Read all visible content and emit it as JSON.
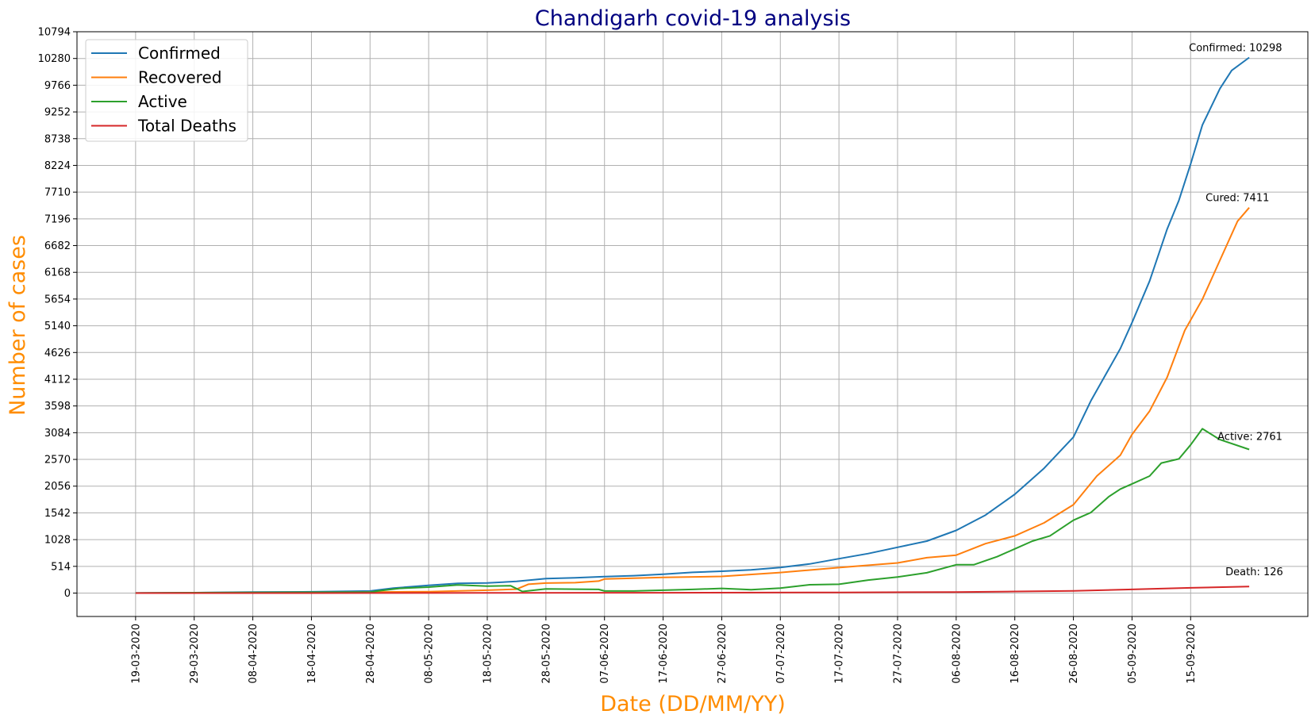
{
  "chart_data": {
    "type": "line",
    "title": "Chandigarh covid-19 analysis",
    "xlabel": "Date (DD/MM/YY)",
    "ylabel": "Number of cases",
    "x_start": "19-03-2020",
    "x_end": "25-09-2020",
    "xlim": [
      "09-03-2020",
      "05-10-2020"
    ],
    "ylim": [
      -450,
      10794
    ],
    "x_ticks": [
      "19-03-2020",
      "29-03-2020",
      "08-04-2020",
      "18-04-2020",
      "28-04-2020",
      "08-05-2020",
      "18-05-2020",
      "28-05-2020",
      "07-06-2020",
      "17-06-2020",
      "27-06-2020",
      "07-07-2020",
      "17-07-2020",
      "27-07-2020",
      "06-08-2020",
      "16-08-2020",
      "26-08-2020",
      "05-09-2020",
      "15-09-2020"
    ],
    "y_ticks": [
      0,
      514,
      1028,
      1542,
      2056,
      2570,
      3084,
      3598,
      4112,
      4626,
      5140,
      5654,
      6168,
      6682,
      7196,
      7710,
      8224,
      8738,
      9252,
      9766,
      10280,
      10794
    ],
    "grid": true,
    "legend_position": "top-left",
    "series": [
      {
        "name": "Confirmed",
        "color": "#1f77b4",
        "points": [
          [
            "19-03-2020",
            1
          ],
          [
            "29-03-2020",
            8
          ],
          [
            "08-04-2020",
            18
          ],
          [
            "18-04-2020",
            25
          ],
          [
            "28-04-2020",
            40
          ],
          [
            "02-05-2020",
            94
          ],
          [
            "08-05-2020",
            150
          ],
          [
            "13-05-2020",
            187
          ],
          [
            "18-05-2020",
            196
          ],
          [
            "23-05-2020",
            225
          ],
          [
            "28-05-2020",
            279
          ],
          [
            "02-06-2020",
            294
          ],
          [
            "07-06-2020",
            317
          ],
          [
            "12-06-2020",
            334
          ],
          [
            "17-06-2020",
            362
          ],
          [
            "22-06-2020",
            398
          ],
          [
            "27-06-2020",
            420
          ],
          [
            "02-07-2020",
            446
          ],
          [
            "07-07-2020",
            491
          ],
          [
            "12-07-2020",
            560
          ],
          [
            "17-07-2020",
            660
          ],
          [
            "22-07-2020",
            760
          ],
          [
            "27-07-2020",
            880
          ],
          [
            "01-08-2020",
            1000
          ],
          [
            "06-08-2020",
            1206
          ],
          [
            "11-08-2020",
            1500
          ],
          [
            "16-08-2020",
            1900
          ],
          [
            "21-08-2020",
            2400
          ],
          [
            "26-08-2020",
            3000
          ],
          [
            "29-08-2020",
            3700
          ],
          [
            "31-08-2020",
            4100
          ],
          [
            "03-09-2020",
            4700
          ],
          [
            "05-09-2020",
            5200
          ],
          [
            "08-09-2020",
            6000
          ],
          [
            "11-09-2020",
            7000
          ],
          [
            "13-09-2020",
            7550
          ],
          [
            "15-09-2020",
            8250
          ],
          [
            "17-09-2020",
            9000
          ],
          [
            "20-09-2020",
            9700
          ],
          [
            "22-09-2020",
            10050
          ],
          [
            "25-09-2020",
            10298
          ]
        ]
      },
      {
        "name": "Recovered",
        "color": "#ff7f0e",
        "points": [
          [
            "19-03-2020",
            0
          ],
          [
            "08-04-2020",
            5
          ],
          [
            "28-04-2020",
            20
          ],
          [
            "08-05-2020",
            27
          ],
          [
            "18-05-2020",
            55
          ],
          [
            "23-05-2020",
            75
          ],
          [
            "25-05-2020",
            170
          ],
          [
            "28-05-2020",
            193
          ],
          [
            "02-06-2020",
            200
          ],
          [
            "06-06-2020",
            230
          ],
          [
            "07-06-2020",
            270
          ],
          [
            "17-06-2020",
            300
          ],
          [
            "27-06-2020",
            320
          ],
          [
            "07-07-2020",
            395
          ],
          [
            "17-07-2020",
            490
          ],
          [
            "27-07-2020",
            580
          ],
          [
            "01-08-2020",
            680
          ],
          [
            "06-08-2020",
            730
          ],
          [
            "11-08-2020",
            950
          ],
          [
            "16-08-2020",
            1100
          ],
          [
            "21-08-2020",
            1350
          ],
          [
            "26-08-2020",
            1700
          ],
          [
            "30-08-2020",
            2250
          ],
          [
            "03-09-2020",
            2650
          ],
          [
            "05-09-2020",
            3050
          ],
          [
            "08-09-2020",
            3500
          ],
          [
            "11-09-2020",
            4150
          ],
          [
            "14-09-2020",
            5050
          ],
          [
            "17-09-2020",
            5650
          ],
          [
            "20-09-2020",
            6400
          ],
          [
            "23-09-2020",
            7150
          ],
          [
            "25-09-2020",
            7411
          ]
        ]
      },
      {
        "name": "Active",
        "color": "#2ca02c",
        "points": [
          [
            "19-03-2020",
            1
          ],
          [
            "08-04-2020",
            12
          ],
          [
            "28-04-2020",
            20
          ],
          [
            "30-04-2020",
            50
          ],
          [
            "03-05-2020",
            90
          ],
          [
            "08-05-2020",
            115
          ],
          [
            "13-05-2020",
            155
          ],
          [
            "18-05-2020",
            135
          ],
          [
            "22-05-2020",
            140
          ],
          [
            "24-05-2020",
            30
          ],
          [
            "28-05-2020",
            80
          ],
          [
            "02-06-2020",
            75
          ],
          [
            "06-06-2020",
            70
          ],
          [
            "07-06-2020",
            40
          ],
          [
            "12-06-2020",
            40
          ],
          [
            "17-06-2020",
            55
          ],
          [
            "22-06-2020",
            70
          ],
          [
            "27-06-2020",
            90
          ],
          [
            "02-07-2020",
            65
          ],
          [
            "07-07-2020",
            95
          ],
          [
            "12-07-2020",
            160
          ],
          [
            "17-07-2020",
            170
          ],
          [
            "22-07-2020",
            250
          ],
          [
            "27-07-2020",
            310
          ],
          [
            "01-08-2020",
            390
          ],
          [
            "06-08-2020",
            545
          ],
          [
            "09-08-2020",
            545
          ],
          [
            "13-08-2020",
            700
          ],
          [
            "16-08-2020",
            850
          ],
          [
            "19-08-2020",
            1000
          ],
          [
            "22-08-2020",
            1100
          ],
          [
            "26-08-2020",
            1400
          ],
          [
            "29-08-2020",
            1550
          ],
          [
            "01-09-2020",
            1850
          ],
          [
            "03-09-2020",
            2000
          ],
          [
            "05-09-2020",
            2100
          ],
          [
            "08-09-2020",
            2250
          ],
          [
            "10-09-2020",
            2500
          ],
          [
            "13-09-2020",
            2580
          ],
          [
            "15-09-2020",
            2850
          ],
          [
            "17-09-2020",
            3160
          ],
          [
            "20-09-2020",
            2950
          ],
          [
            "25-09-2020",
            2761
          ]
        ]
      },
      {
        "name": "Total Deaths",
        "color": "#d62728",
        "points": [
          [
            "19-03-2020",
            0
          ],
          [
            "18-04-2020",
            0
          ],
          [
            "18-05-2020",
            3
          ],
          [
            "17-06-2020",
            6
          ],
          [
            "17-07-2020",
            12
          ],
          [
            "06-08-2020",
            20
          ],
          [
            "16-08-2020",
            30
          ],
          [
            "26-08-2020",
            42
          ],
          [
            "05-09-2020",
            70
          ],
          [
            "15-09-2020",
            100
          ],
          [
            "25-09-2020",
            126
          ]
        ]
      }
    ],
    "annotations": [
      {
        "text": "Confirmed: 10298",
        "x": "25-09-2020",
        "y": 10298
      },
      {
        "text": "Cured: 7411",
        "x": "25-09-2020",
        "y": 7411
      },
      {
        "text": "Active: 2761",
        "x": "25-09-2020",
        "y": 2761
      },
      {
        "text": "Death: 126",
        "x": "25-09-2020",
        "y": 126
      }
    ],
    "colors": {
      "title": "#000080",
      "axis_titles": "#ff8c00",
      "grid": "#b0b0b0"
    }
  }
}
